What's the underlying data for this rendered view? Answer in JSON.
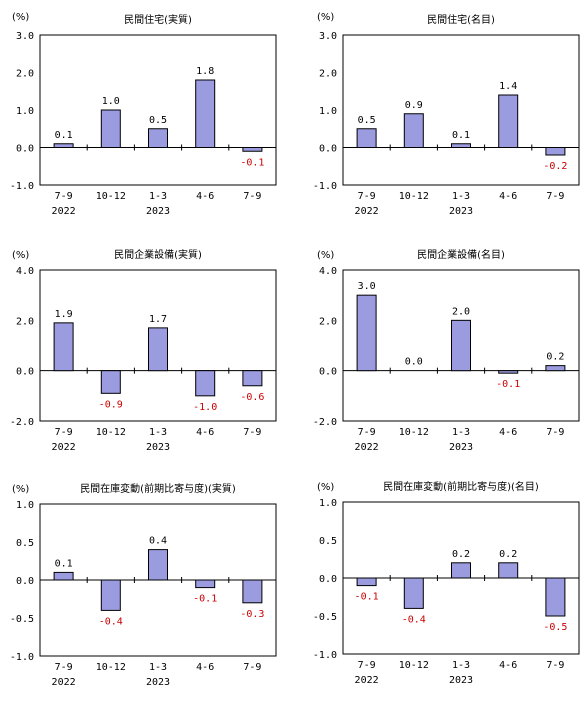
{
  "chart_data": [
    {
      "type": "bar",
      "title": "民間住宅(実質)",
      "unit": "(%)",
      "categories": [
        "7-9",
        "10-12",
        "1-3",
        "4-6",
        "7-9"
      ],
      "years": [
        "2022",
        "",
        "2023",
        "",
        ""
      ],
      "values": [
        0.1,
        1.0,
        0.5,
        1.8,
        -0.1
      ],
      "value_labels": [
        "0.1",
        "1.0",
        "0.5",
        "1.8",
        "-0.1"
      ],
      "ylim": [
        -1.0,
        3.0
      ],
      "yticks": [
        3.0,
        2.0,
        1.0,
        0.0,
        -1.0
      ],
      "ytick_labels": [
        "3.0",
        "2.0",
        "1.0",
        "0.0",
        "-1.0"
      ]
    },
    {
      "type": "bar",
      "title": "民間住宅(名目)",
      "unit": "(%)",
      "categories": [
        "7-9",
        "10-12",
        "1-3",
        "4-6",
        "7-9"
      ],
      "years": [
        "2022",
        "",
        "2023",
        "",
        ""
      ],
      "values": [
        0.5,
        0.9,
        0.1,
        1.4,
        -0.2
      ],
      "value_labels": [
        "0.5",
        "0.9",
        "0.1",
        "1.4",
        "-0.2"
      ],
      "ylim": [
        -1.0,
        3.0
      ],
      "yticks": [
        3.0,
        2.0,
        1.0,
        0.0,
        -1.0
      ],
      "ytick_labels": [
        "3.0",
        "2.0",
        "1.0",
        "0.0",
        "-1.0"
      ]
    },
    {
      "type": "bar",
      "title": "民間企業設備(実質)",
      "unit": "(%)",
      "categories": [
        "7-9",
        "10-12",
        "1-3",
        "4-6",
        "7-9"
      ],
      "years": [
        "2022",
        "",
        "2023",
        "",
        ""
      ],
      "values": [
        1.9,
        -0.9,
        1.7,
        -1.0,
        -0.6
      ],
      "value_labels": [
        "1.9",
        "-0.9",
        "1.7",
        "-1.0",
        "-0.6"
      ],
      "ylim": [
        -2.0,
        4.0
      ],
      "yticks": [
        4.0,
        2.0,
        0.0,
        -2.0
      ],
      "ytick_labels": [
        "4.0",
        "2.0",
        "0.0",
        "-2.0"
      ]
    },
    {
      "type": "bar",
      "title": "民間企業設備(名目)",
      "unit": "(%)",
      "categories": [
        "7-9",
        "10-12",
        "1-3",
        "4-6",
        "7-9"
      ],
      "years": [
        "2022",
        "",
        "2023",
        "",
        ""
      ],
      "values": [
        3.0,
        0.0,
        2.0,
        -0.1,
        0.2
      ],
      "value_labels": [
        "3.0",
        "0.0",
        "2.0",
        "-0.1",
        "0.2"
      ],
      "ylim": [
        -2.0,
        4.0
      ],
      "yticks": [
        4.0,
        2.0,
        0.0,
        -2.0
      ],
      "ytick_labels": [
        "4.0",
        "2.0",
        "0.0",
        "-2.0"
      ]
    },
    {
      "type": "bar",
      "title": "民間在庫変動(前期比寄与度)(実質)",
      "unit": "(%)",
      "categories": [
        "7-9",
        "10-12",
        "1-3",
        "4-6",
        "7-9"
      ],
      "years": [
        "2022",
        "",
        "2023",
        "",
        ""
      ],
      "values": [
        0.1,
        -0.4,
        0.4,
        -0.1,
        -0.3
      ],
      "value_labels": [
        "0.1",
        "-0.4",
        "0.4",
        "-0.1",
        "-0.3"
      ],
      "ylim": [
        -1.0,
        1.0
      ],
      "yticks": [
        1.0,
        0.5,
        0.0,
        -0.5,
        -1.0
      ],
      "ytick_labels": [
        "1.0",
        "0.5",
        "0.0",
        "-0.5",
        "-1.0"
      ]
    },
    {
      "type": "bar",
      "title": "民間在庫変動(前期比寄与度)(名目)",
      "unit": "(%)",
      "categories": [
        "7-9",
        "10-12",
        "1-3",
        "4-6",
        "7-9"
      ],
      "years": [
        "2022",
        "",
        "2023",
        "",
        ""
      ],
      "values": [
        -0.1,
        -0.4,
        0.2,
        0.2,
        -0.5
      ],
      "value_labels": [
        "-0.1",
        "-0.4",
        "0.2",
        "0.2",
        "-0.5"
      ],
      "ylim": [
        -1.0,
        1.0
      ],
      "yticks": [
        1.0,
        0.5,
        0.0,
        -0.5,
        -1.0
      ],
      "ytick_labels": [
        "1.0",
        "0.5",
        "0.0",
        "-0.5",
        "-1.0"
      ]
    }
  ],
  "colors": {
    "bar": "#9b9bdf",
    "negative_label": "#cc0000"
  }
}
